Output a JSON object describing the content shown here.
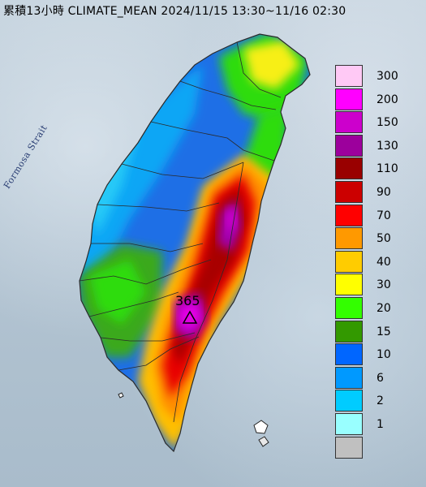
{
  "title": "累積13小時 CLIMATE_MEAN 2024/11/15 13:30~11/16 02:30",
  "strait_label": "Formosa Strait",
  "max_value_label": "365",
  "max_marker_icon": "triangle-icon",
  "legend": {
    "unit": "",
    "levels": [
      {
        "label": "300",
        "color": "#ffc9f5"
      },
      {
        "label": "200",
        "color": "#ff00ff"
      },
      {
        "label": "150",
        "color": "#cc00cc"
      },
      {
        "label": "130",
        "color": "#9c009c"
      },
      {
        "label": "110",
        "color": "#990000"
      },
      {
        "label": "90",
        "color": "#cc0000"
      },
      {
        "label": "70",
        "color": "#ff0000"
      },
      {
        "label": "50",
        "color": "#ff9900"
      },
      {
        "label": "40",
        "color": "#ffcc00"
      },
      {
        "label": "30",
        "color": "#ffff00"
      },
      {
        "label": "20",
        "color": "#33ff00"
      },
      {
        "label": "15",
        "color": "#339900"
      },
      {
        "label": "10",
        "color": "#0066ff"
      },
      {
        "label": "6",
        "color": "#0099ff"
      },
      {
        "label": "2",
        "color": "#00ccff"
      },
      {
        "label": "1",
        "color": "#99ffff"
      },
      {
        "label": "",
        "color": "#c0c0c0"
      }
    ]
  }
}
